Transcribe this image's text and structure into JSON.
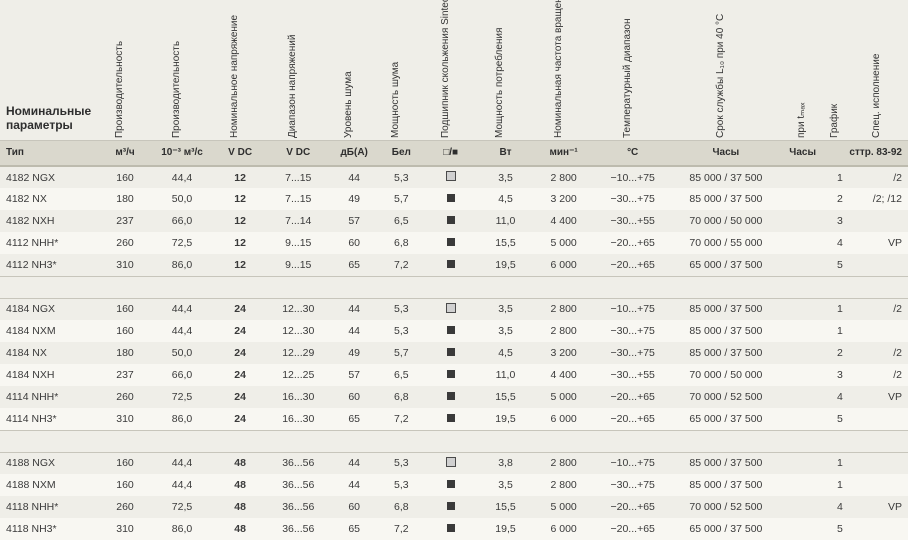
{
  "corner_label": "Номинальные параметры",
  "vertical_headers": [
    "Производительность",
    "Производительность",
    "Номинальное напряжение",
    "Диапазон напряжений",
    "Уровень шума",
    "Мощность шума",
    "Подшипник скольжения Sintec Шарикоподшипник",
    "Мощность потребления",
    "Номинальная частота вращения",
    "Температурный диапазон",
    "Срок службы L₁₀ при 40 °C",
    "при tₘₐₓ",
    "График",
    "Спец. исполнение"
  ],
  "units_row": {
    "first": "Тип",
    "cells": [
      "м³/ч",
      "10⁻³ м³/с",
      "V DC",
      "V DC",
      "дБ(A)",
      "Бел",
      "□/■",
      "Вт",
      "мин⁻¹",
      "°C",
      "Часы",
      "Часы",
      ""
    ],
    "page_ref": "сттр. 83-92"
  },
  "groups": [
    {
      "rows": [
        {
          "type": "4182 NGX",
          "perf": "160",
          "perf2": "44,4",
          "vdc": "12",
          "range": "7...15",
          "db": "44",
          "bel": "5,3",
          "bearing": "open",
          "w": "3,5",
          "rpm": "2 800",
          "temp": "−10...+75",
          "life": "85 000 / 37 500",
          "graph": "1",
          "spec": "/2"
        },
        {
          "type": "4182 NX",
          "perf": "180",
          "perf2": "50,0",
          "vdc": "12",
          "range": "7...15",
          "db": "49",
          "bel": "5,7",
          "bearing": "solid",
          "w": "4,5",
          "rpm": "3 200",
          "temp": "−30...+75",
          "life": "85 000 / 37 500",
          "graph": "2",
          "spec": "/2; /12"
        },
        {
          "type": "4182 NXH",
          "perf": "237",
          "perf2": "66,0",
          "vdc": "12",
          "range": "7...14",
          "db": "57",
          "bel": "6,5",
          "bearing": "solid",
          "w": "11,0",
          "rpm": "4 400",
          "temp": "−30...+55",
          "life": "70 000 / 50 000",
          "graph": "3",
          "spec": ""
        },
        {
          "type": "4112 NHH*",
          "perf": "260",
          "perf2": "72,5",
          "vdc": "12",
          "range": "9...15",
          "db": "60",
          "bel": "6,8",
          "bearing": "solid",
          "w": "15,5",
          "rpm": "5 000",
          "temp": "−20...+65",
          "life": "70 000 / 55 000",
          "graph": "4",
          "spec": "VP"
        },
        {
          "type": "4112 NH3*",
          "perf": "310",
          "perf2": "86,0",
          "vdc": "12",
          "range": "9...15",
          "db": "65",
          "bel": "7,2",
          "bearing": "solid",
          "w": "19,5",
          "rpm": "6 000",
          "temp": "−20...+65",
          "life": "65 000 / 37 500",
          "graph": "5",
          "spec": ""
        }
      ]
    },
    {
      "rows": [
        {
          "type": "4184 NGX",
          "perf": "160",
          "perf2": "44,4",
          "vdc": "24",
          "range": "12...30",
          "db": "44",
          "bel": "5,3",
          "bearing": "open",
          "w": "3,5",
          "rpm": "2 800",
          "temp": "−10...+75",
          "life": "85 000 / 37 500",
          "graph": "1",
          "spec": "/2"
        },
        {
          "type": "4184 NXM",
          "perf": "160",
          "perf2": "44,4",
          "vdc": "24",
          "range": "12...30",
          "db": "44",
          "bel": "5,3",
          "bearing": "solid",
          "w": "3,5",
          "rpm": "2 800",
          "temp": "−30...+75",
          "life": "85 000 / 37 500",
          "graph": "1",
          "spec": ""
        },
        {
          "type": "4184 NX",
          "perf": "180",
          "perf2": "50,0",
          "vdc": "24",
          "range": "12...29",
          "db": "49",
          "bel": "5,7",
          "bearing": "solid",
          "w": "4,5",
          "rpm": "3 200",
          "temp": "−30...+75",
          "life": "85 000 / 37 500",
          "graph": "2",
          "spec": "/2"
        },
        {
          "type": "4184 NXH",
          "perf": "237",
          "perf2": "66,0",
          "vdc": "24",
          "range": "12...25",
          "db": "57",
          "bel": "6,5",
          "bearing": "solid",
          "w": "11,0",
          "rpm": "4 400",
          "temp": "−30...+55",
          "life": "70 000 / 50 000",
          "graph": "3",
          "spec": "/2"
        },
        {
          "type": "4114 NHH*",
          "perf": "260",
          "perf2": "72,5",
          "vdc": "24",
          "range": "16...30",
          "db": "60",
          "bel": "6,8",
          "bearing": "solid",
          "w": "15,5",
          "rpm": "5 000",
          "temp": "−20...+65",
          "life": "70 000 / 52 500",
          "graph": "4",
          "spec": "VP"
        },
        {
          "type": "4114 NH3*",
          "perf": "310",
          "perf2": "86,0",
          "vdc": "24",
          "range": "16...30",
          "db": "65",
          "bel": "7,2",
          "bearing": "solid",
          "w": "19,5",
          "rpm": "6 000",
          "temp": "−20...+65",
          "life": "65 000 / 37 500",
          "graph": "5",
          "spec": ""
        }
      ]
    },
    {
      "rows": [
        {
          "type": "4188 NGX",
          "perf": "160",
          "perf2": "44,4",
          "vdc": "48",
          "range": "36...56",
          "db": "44",
          "bel": "5,3",
          "bearing": "open",
          "w": "3,8",
          "rpm": "2 800",
          "temp": "−10...+75",
          "life": "85 000 / 37 500",
          "graph": "1",
          "spec": ""
        },
        {
          "type": "4188 NXM",
          "perf": "160",
          "perf2": "44,4",
          "vdc": "48",
          "range": "36...56",
          "db": "44",
          "bel": "5,3",
          "bearing": "solid",
          "w": "3,5",
          "rpm": "2 800",
          "temp": "−30...+75",
          "life": "85 000 / 37 500",
          "graph": "1",
          "spec": ""
        },
        {
          "type": "4118 NHH*",
          "perf": "260",
          "perf2": "72,5",
          "vdc": "48",
          "range": "36...56",
          "db": "60",
          "bel": "6,8",
          "bearing": "solid",
          "w": "15,5",
          "rpm": "5 000",
          "temp": "−20...+65",
          "life": "70 000 / 52 500",
          "graph": "4",
          "spec": "VP"
        },
        {
          "type": "4118 NH3*",
          "perf": "310",
          "perf2": "86,0",
          "vdc": "48",
          "range": "36...56",
          "db": "65",
          "bel": "7,2",
          "bearing": "solid",
          "w": "19,5",
          "rpm": "6 000",
          "temp": "−20...+65",
          "life": "65 000 / 37 500",
          "graph": "5",
          "spec": ""
        }
      ]
    }
  ]
}
